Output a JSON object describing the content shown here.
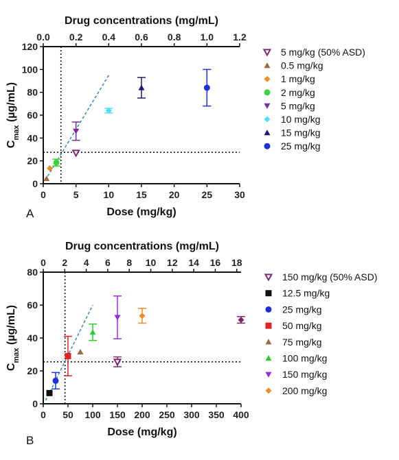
{
  "chart_data": [
    {
      "panel_label": "A",
      "type": "scatter",
      "xlabel": "Dose (mg/kg)",
      "x2label": "Drug concentrations (mg/mL)",
      "ylabel_main": "C",
      "ylabel_sub": "max",
      "ylabel_unit": " (µg/mL)",
      "xlim": [
        0,
        30
      ],
      "ylim": [
        0,
        120
      ],
      "x2lim": [
        0,
        1.2
      ],
      "xticks": [
        "0",
        "5",
        "10",
        "15",
        "20",
        "25",
        "30"
      ],
      "yticks": [
        "0",
        "20",
        "40",
        "60",
        "80",
        "100",
        "120"
      ],
      "x2ticks": [
        "0.0",
        "0.2",
        "0.4",
        "0.6",
        "0.8",
        "1.0",
        "1.2"
      ],
      "vline_x": 2.7,
      "hline_y": 27.5,
      "fit_line": {
        "x": [
          0.3,
          10
        ],
        "y": [
          3,
          95
        ]
      },
      "series": [
        {
          "name": "5 mg/kg (50% ASD)",
          "marker": "triangle-down-open",
          "color": "#7b2a6b",
          "x": 5,
          "y": 27,
          "err": 0
        },
        {
          "name": "0.5 mg/kg",
          "marker": "triangle-up",
          "color": "#9c6b3c",
          "x": 0.5,
          "y": 4.5,
          "err": 0
        },
        {
          "name": "1 mg/kg",
          "marker": "diamond",
          "color": "#f08a24",
          "x": 1,
          "y": 13.5,
          "err": 0
        },
        {
          "name": "2 mg/kg",
          "marker": "circle",
          "color": "#3ed13e",
          "x": 2,
          "y": 18.5,
          "err": 3
        },
        {
          "name": "5 mg/kg",
          "marker": "triangle-down",
          "color": "#7a2aa0",
          "x": 5,
          "y": 46,
          "err": 8
        },
        {
          "name": "10 mg/kg",
          "marker": "diamond",
          "color": "#4ee0f0",
          "x": 10,
          "y": 64,
          "err": 2
        },
        {
          "name": "15 mg/kg",
          "marker": "triangle-up",
          "color": "#1c1c6e",
          "x": 15,
          "y": 84,
          "err": 9
        },
        {
          "name": "25 mg/kg",
          "marker": "circle",
          "color": "#1f2fd6",
          "x": 25,
          "y": 84,
          "err": 16
        }
      ]
    },
    {
      "panel_label": "B",
      "type": "scatter",
      "xlabel": "Dose (mg/kg)",
      "x2label": "Drug concentrations (mg/mL)",
      "ylabel_main": "C",
      "ylabel_sub": "max",
      "ylabel_unit": " (µg/mL)",
      "xlim": [
        0,
        400
      ],
      "ylim": [
        0,
        80
      ],
      "x2lim": [
        0,
        18.4
      ],
      "xticks": [
        "0",
        "50",
        "100",
        "150",
        "200",
        "250",
        "300",
        "350",
        "400"
      ],
      "yticks": [
        "0",
        "20",
        "40",
        "60",
        "80"
      ],
      "x2ticks": [
        "0",
        "2",
        "4",
        "6",
        "8",
        "10",
        "12",
        "14",
        "16",
        "18"
      ],
      "vline_x": 44,
      "hline_y": 25.5,
      "fit_line": {
        "x": [
          5,
          100
        ],
        "y": [
          2,
          60
        ]
      },
      "series": [
        {
          "name": "150 mg/kg (50% ASD)",
          "marker": "triangle-down-open",
          "color": "#7b2a6b",
          "x": 150,
          "y": 25.5,
          "err": 3
        },
        {
          "name": "12.5 mg/kg",
          "marker": "square",
          "color": "#111111",
          "x": 12.5,
          "y": 6.5,
          "err": 0
        },
        {
          "name": "25 mg/kg",
          "marker": "circle",
          "color": "#1f2fd6",
          "x": 25,
          "y": 14,
          "err": 5
        },
        {
          "name": "50 mg/kg",
          "marker": "square",
          "color": "#e02222",
          "x": 50,
          "y": 29,
          "err": 12
        },
        {
          "name": "75 mg/kg",
          "marker": "triangle-up",
          "color": "#9c6b3c",
          "x": 75,
          "y": 31.5,
          "err": 0
        },
        {
          "name": "100 mg/kg",
          "marker": "triangle-up",
          "color": "#2ec82e",
          "x": 100,
          "y": 43.5,
          "err": 5
        },
        {
          "name": "150 mg/kg",
          "marker": "triangle-down",
          "color": "#9a2ae0",
          "x": 150,
          "y": 52.5,
          "err": 13
        },
        {
          "name": "200 mg/kg",
          "marker": "diamond",
          "color": "#f08a24",
          "x": 200,
          "y": 53.5,
          "err": 4.5
        },
        {
          "name": "",
          "marker": "diamond",
          "color": "#7b2a6b",
          "x": 400,
          "y": 51,
          "err": 2
        }
      ]
    }
  ]
}
